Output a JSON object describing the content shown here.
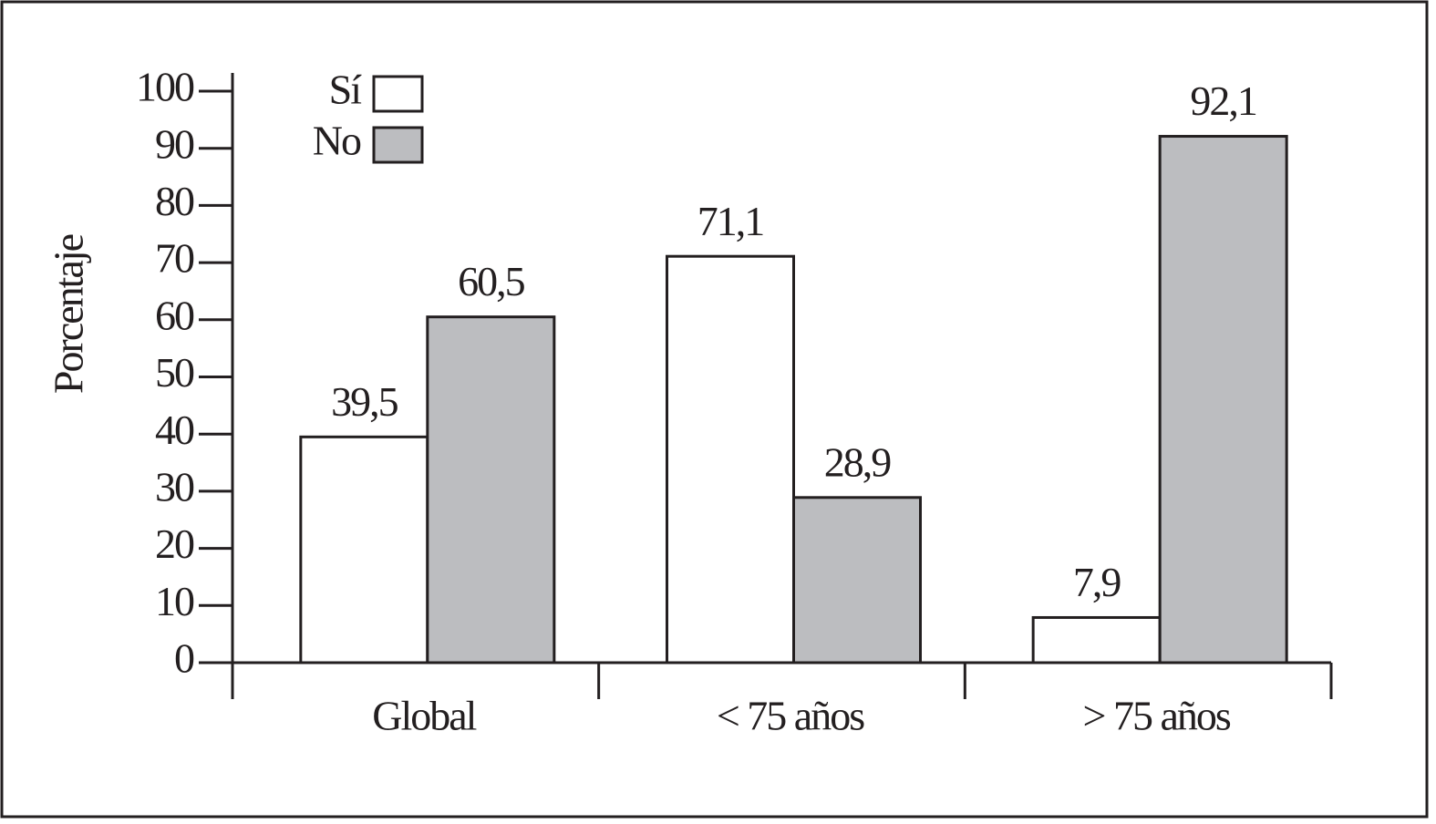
{
  "chart_data": {
    "type": "bar",
    "y_label": "Porcentaje",
    "categories": [
      "Global",
      "< 75 años",
      "> 75 años"
    ],
    "series": [
      {
        "name": "Sí",
        "color": "#ffffff",
        "values": [
          39.5,
          71.1,
          7.9
        ],
        "value_labels": [
          "39,5",
          "71,1",
          "7,9"
        ]
      },
      {
        "name": "No",
        "color": "#bcbdc0",
        "values": [
          60.5,
          28.9,
          92.1
        ],
        "value_labels": [
          "60,5",
          "28,9",
          "92,1"
        ]
      }
    ],
    "ylim": [
      0,
      100
    ],
    "yticks": [
      0,
      10,
      20,
      30,
      40,
      50,
      60,
      70,
      80,
      90,
      100
    ]
  }
}
